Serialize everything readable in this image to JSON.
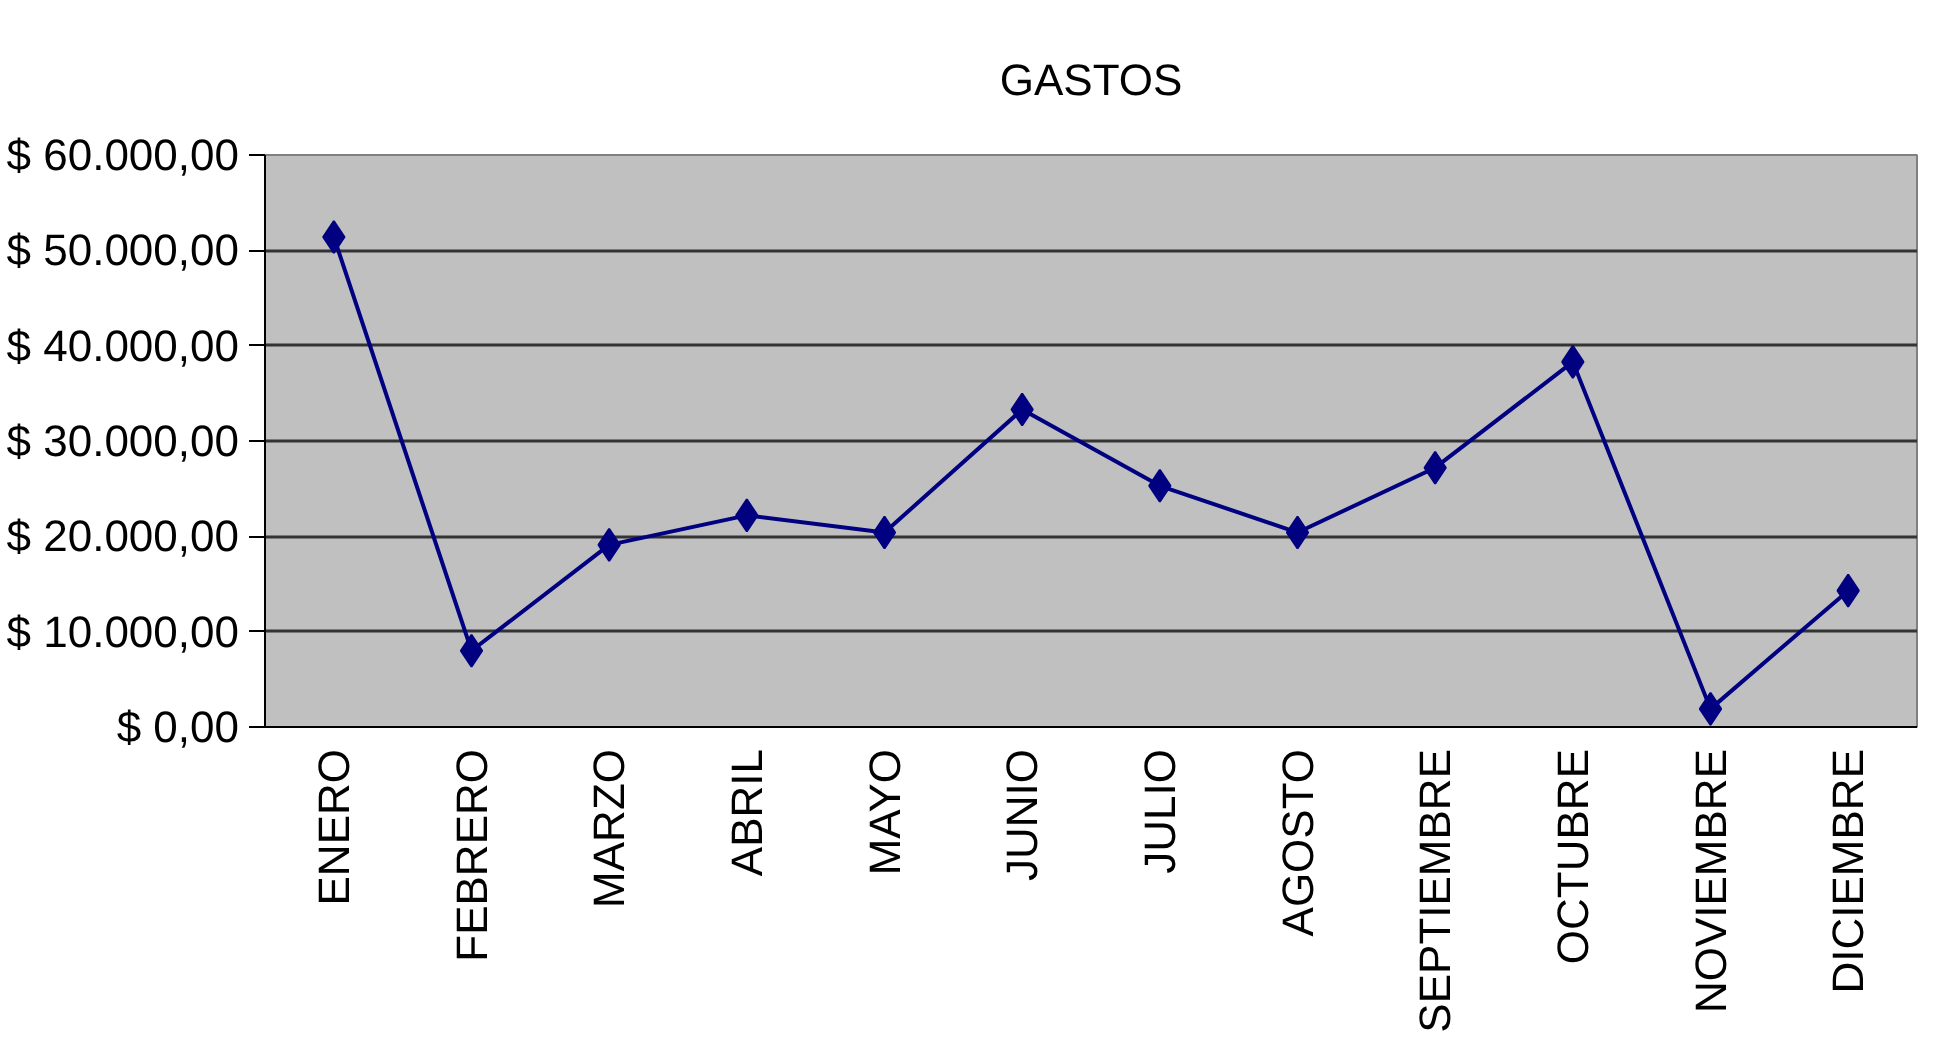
{
  "chart_data": {
    "type": "line",
    "title": "GASTOS",
    "categories": [
      "ENERO",
      "FEBRERO",
      "MARZO",
      "ABRIL",
      "MAYO",
      "JUNIO",
      "JULIO",
      "AGOSTO",
      "SEPTIEMBRE",
      "OCTUBRE",
      "NOVIEMBRE",
      "DICIEMBRE"
    ],
    "series": [
      {
        "color": "#000080",
        "values": [
          51400,
          8000,
          19100,
          22200,
          20400,
          33300,
          25300,
          20400,
          27200,
          38300,
          1900,
          14300
        ]
      }
    ],
    "ylim": [
      0,
      60000
    ],
    "yticks": [
      {
        "value": 0,
        "label": "$ 0,00"
      },
      {
        "value": 10000,
        "label": "$ 10.000,00"
      },
      {
        "value": 20000,
        "label": "$ 20.000,00"
      },
      {
        "value": 30000,
        "label": "$ 30.000,00"
      },
      {
        "value": 40000,
        "label": "$ 40.000,00"
      },
      {
        "value": 50000,
        "label": "$ 50.000,00"
      },
      {
        "value": 60000,
        "label": "$ 60.000,00"
      }
    ],
    "grid": "y",
    "marker": "diamond",
    "line_style": "solid"
  }
}
